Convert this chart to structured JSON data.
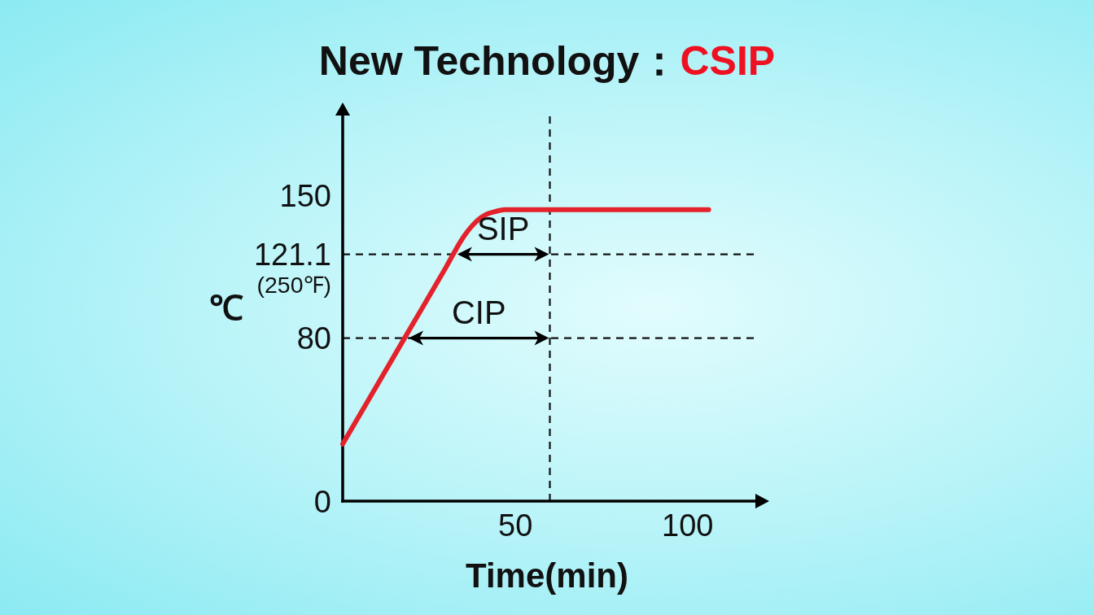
{
  "chart_data": {
    "type": "line",
    "title": "New Technology：",
    "subtitle": "CSIP",
    "xlabel": "Time(min)",
    "ylabel": "℃",
    "x": [
      0,
      10,
      20,
      30,
      34,
      36,
      38,
      40,
      42,
      44,
      47,
      51,
      60,
      106
    ],
    "series": [
      {
        "color": "#e3222b",
        "values": [
          28,
          57,
          86,
          115,
          127,
          132,
          136,
          139,
          141,
          142,
          143,
          143,
          143,
          143
        ]
      }
    ],
    "xlim": [
      0,
      120
    ],
    "ylim": [
      0,
      190
    ],
    "xticks": [
      50,
      100
    ],
    "yticks": [
      0,
      80,
      {
        "value": 121.1,
        "label": "121.1 (250℉)"
      },
      150
    ],
    "ref_lines": [
      {
        "axis": "y",
        "value": 80,
        "label": "CIP",
        "line_style": "dashed",
        "color": "#111111"
      },
      {
        "axis": "y",
        "value": 121.1,
        "label": "SIP",
        "line_style": "dashed",
        "color": "#111111"
      },
      {
        "axis": "x",
        "value": 60,
        "line_style": "dashed",
        "color": "#111111"
      }
    ],
    "line_style": "solid"
  }
}
